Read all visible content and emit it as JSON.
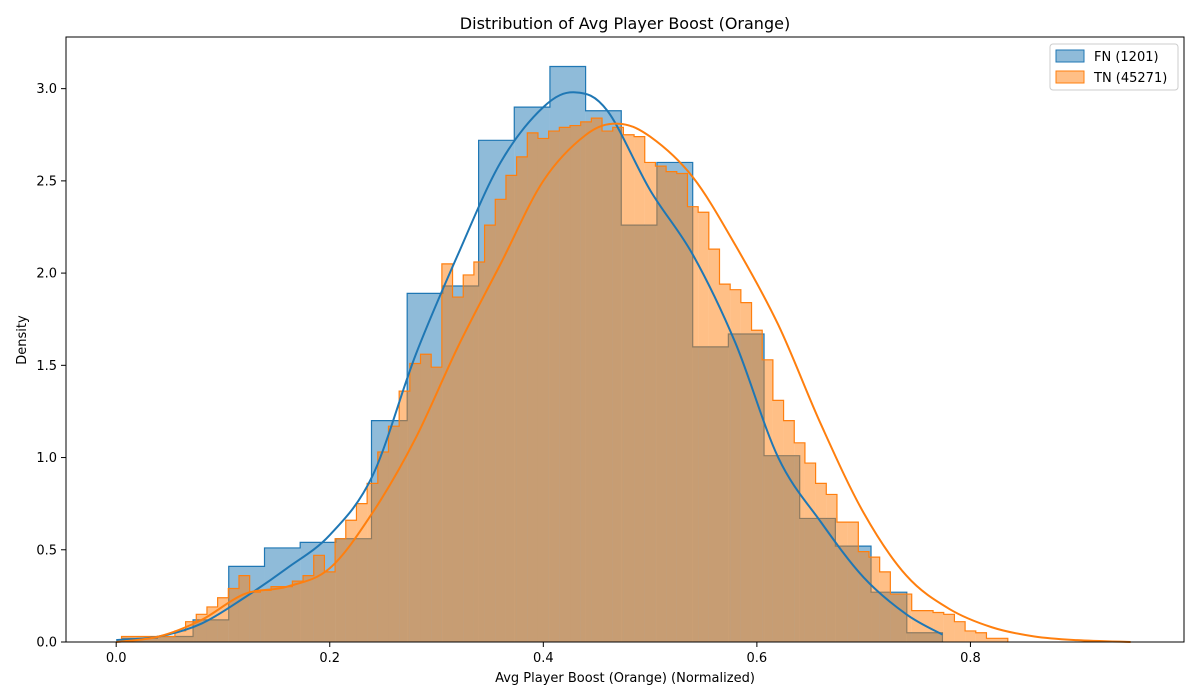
{
  "chart_data": {
    "type": "histogram",
    "title": "Distribution of Avg Player Boost (Orange)",
    "xlabel": "Avg Player Boost (Orange) (Normalized)",
    "ylabel": "Density",
    "xlim": [
      -0.047,
      1.0
    ],
    "ylim": [
      0.0,
      3.28
    ],
    "x_ticks": [
      0.0,
      0.2,
      0.4,
      0.6,
      0.8
    ],
    "x_tick_labels": [
      "0.0",
      "0.2",
      "0.4",
      "0.6",
      "0.8"
    ],
    "y_ticks": [
      0.0,
      0.5,
      1.0,
      1.5,
      2.0,
      2.5,
      3.0
    ],
    "y_tick_labels": [
      "0.0",
      "0.5",
      "1.0",
      "1.5",
      "2.0",
      "2.5",
      "3.0"
    ],
    "grid": false,
    "legend_position": "top-right",
    "series": [
      {
        "name": "FN (1201)",
        "color": "#1f77b4",
        "fill_color": "#1f77b4",
        "fill_opacity": 0.5,
        "bin_edges": [
          0.0052,
          0.0386,
          0.072,
          0.1054,
          0.1389,
          0.1723,
          0.2057,
          0.2391,
          0.2725,
          0.3059,
          0.3394,
          0.3728,
          0.4062,
          0.4396,
          0.473,
          0.5064,
          0.5399,
          0.5733,
          0.6067,
          0.6401,
          0.6735,
          0.7069,
          0.7404,
          0.7738
        ],
        "densities": [
          0.02,
          0.03,
          0.12,
          0.41,
          0.51,
          0.54,
          0.56,
          1.2,
          1.89,
          1.93,
          2.72,
          2.9,
          3.12,
          2.88,
          2.26,
          2.6,
          1.6,
          1.67,
          1.01,
          0.67,
          0.52,
          0.27,
          0.05
        ],
        "kde": {
          "x": [
            0.0,
            0.04,
            0.08,
            0.12,
            0.16,
            0.2,
            0.24,
            0.28,
            0.32,
            0.36,
            0.4,
            0.43,
            0.46,
            0.5,
            0.54,
            0.58,
            0.62,
            0.66,
            0.7,
            0.74,
            0.7738
          ],
          "y": [
            0.01,
            0.03,
            0.1,
            0.24,
            0.4,
            0.58,
            0.9,
            1.55,
            2.1,
            2.6,
            2.9,
            2.98,
            2.88,
            2.45,
            2.1,
            1.62,
            1.0,
            0.65,
            0.35,
            0.15,
            0.04
          ]
        }
      },
      {
        "name": "TN (45271)",
        "color": "#ff7f0e",
        "fill_color": "#ff7f0e",
        "fill_opacity": 0.5,
        "bin_edges": [
          0.005,
          0.055,
          0.065,
          0.075,
          0.085,
          0.095,
          0.105,
          0.115,
          0.125,
          0.135,
          0.145,
          0.165,
          0.175,
          0.185,
          0.195,
          0.205,
          0.215,
          0.225,
          0.235,
          0.245,
          0.255,
          0.265,
          0.275,
          0.285,
          0.295,
          0.305,
          0.315,
          0.325,
          0.335,
          0.345,
          0.355,
          0.365,
          0.375,
          0.385,
          0.395,
          0.405,
          0.415,
          0.425,
          0.435,
          0.445,
          0.455,
          0.465,
          0.475,
          0.485,
          0.495,
          0.505,
          0.515,
          0.525,
          0.535,
          0.545,
          0.555,
          0.565,
          0.575,
          0.585,
          0.595,
          0.605,
          0.615,
          0.625,
          0.635,
          0.645,
          0.655,
          0.665,
          0.675,
          0.685,
          0.695,
          0.705,
          0.715,
          0.725,
          0.735,
          0.745,
          0.765,
          0.775,
          0.785,
          0.795,
          0.805,
          0.815,
          0.835
        ],
        "densities": [
          0.03,
          0.06,
          0.11,
          0.15,
          0.19,
          0.24,
          0.29,
          0.36,
          0.27,
          0.28,
          0.3,
          0.33,
          0.36,
          0.47,
          0.38,
          0.56,
          0.66,
          0.75,
          0.86,
          1.03,
          1.17,
          1.36,
          1.51,
          1.56,
          1.49,
          2.05,
          1.87,
          1.99,
          2.06,
          2.26,
          2.4,
          2.53,
          2.63,
          2.76,
          2.73,
          2.77,
          2.79,
          2.8,
          2.82,
          2.84,
          2.77,
          2.79,
          2.75,
          2.74,
          2.6,
          2.58,
          2.55,
          2.54,
          2.36,
          2.33,
          2.13,
          1.94,
          1.91,
          1.84,
          1.69,
          1.53,
          1.31,
          1.2,
          1.08,
          0.97,
          0.86,
          0.8,
          0.65,
          0.65,
          0.49,
          0.46,
          0.38,
          0.26,
          0.26,
          0.17,
          0.16,
          0.15,
          0.11,
          0.06,
          0.05,
          0.02
        ],
        "kde": {
          "x": [
            0.0,
            0.04,
            0.08,
            0.12,
            0.16,
            0.2,
            0.24,
            0.28,
            0.32,
            0.36,
            0.4,
            0.44,
            0.47,
            0.5,
            0.54,
            0.58,
            0.62,
            0.66,
            0.7,
            0.74,
            0.78,
            0.82,
            0.86,
            0.9,
            0.95
          ],
          "y": [
            0.0,
            0.03,
            0.12,
            0.26,
            0.3,
            0.4,
            0.7,
            1.1,
            1.6,
            2.05,
            2.5,
            2.75,
            2.81,
            2.74,
            2.52,
            2.15,
            1.72,
            1.18,
            0.7,
            0.36,
            0.18,
            0.08,
            0.03,
            0.01,
            0.0
          ]
        }
      }
    ]
  }
}
